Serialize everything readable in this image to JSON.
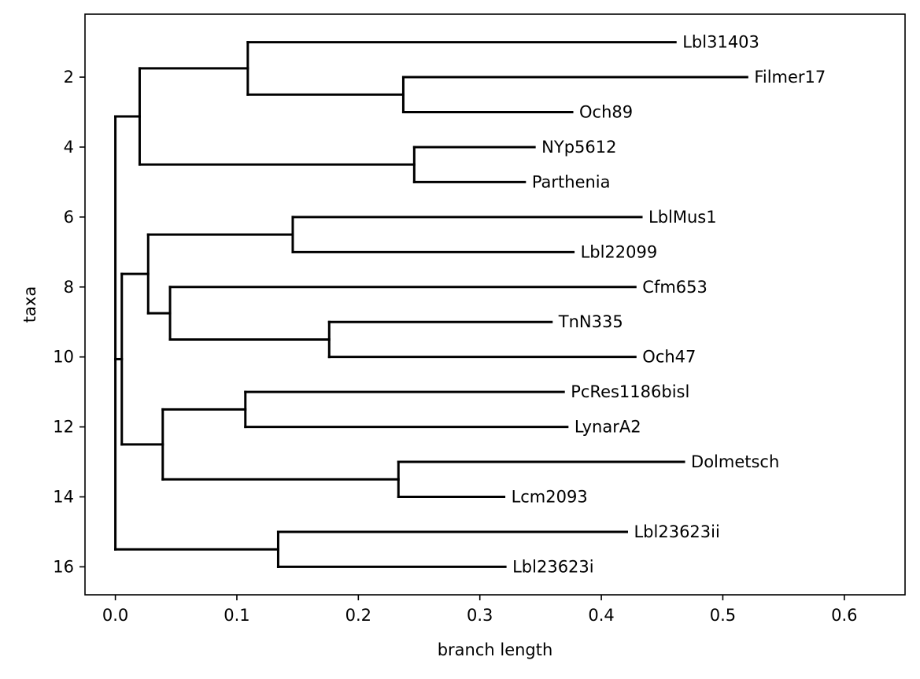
{
  "chart_data": {
    "type": "dendrogram",
    "xlabel": "branch length",
    "ylabel": "taxa",
    "xlim": [
      -0.025,
      0.65
    ],
    "ylim": [
      16.8,
      0.2
    ],
    "grid": false,
    "xticks": [
      {
        "value": 0.0,
        "label": "0.0"
      },
      {
        "value": 0.1,
        "label": "0.1"
      },
      {
        "value": 0.2,
        "label": "0.2"
      },
      {
        "value": 0.3,
        "label": "0.3"
      },
      {
        "value": 0.4,
        "label": "0.4"
      },
      {
        "value": 0.5,
        "label": "0.5"
      },
      {
        "value": 0.6,
        "label": "0.6"
      }
    ],
    "yticks": [
      {
        "value": 2,
        "label": "2"
      },
      {
        "value": 4,
        "label": "4"
      },
      {
        "value": 6,
        "label": "6"
      },
      {
        "value": 8,
        "label": "8"
      },
      {
        "value": 10,
        "label": "10"
      },
      {
        "value": 12,
        "label": "12"
      },
      {
        "value": 14,
        "label": "14"
      },
      {
        "value": 16,
        "label": "16"
      }
    ],
    "leaves": [
      {
        "name": "Lbl31403",
        "y": 1,
        "x": 0.461
      },
      {
        "name": "Filmer17",
        "y": 2,
        "x": 0.52
      },
      {
        "name": "Och89",
        "y": 3,
        "x": 0.376
      },
      {
        "name": "NYp5612",
        "y": 4,
        "x": 0.345
      },
      {
        "name": "Parthenia",
        "y": 5,
        "x": 0.337
      },
      {
        "name": "LblMus1",
        "y": 6,
        "x": 0.433
      },
      {
        "name": "Lbl22099",
        "y": 7,
        "x": 0.377
      },
      {
        "name": "Cfm653",
        "y": 8,
        "x": 0.428
      },
      {
        "name": "TnN335",
        "y": 9,
        "x": 0.359
      },
      {
        "name": "Och47",
        "y": 10,
        "x": 0.428
      },
      {
        "name": "PcRes1186bisl",
        "y": 11,
        "x": 0.369
      },
      {
        "name": "LynarA2",
        "y": 12,
        "x": 0.372
      },
      {
        "name": "Dolmetsch",
        "y": 13,
        "x": 0.468
      },
      {
        "name": "Lcm2093",
        "y": 14,
        "x": 0.32
      },
      {
        "name": "Lbl23623ii",
        "y": 15,
        "x": 0.421
      },
      {
        "name": "Lbl23623i",
        "y": 16,
        "x": 0.321
      }
    ],
    "internal_nodes": [
      {
        "id": "root",
        "x": 0.0,
        "parent": null
      },
      {
        "id": "n1",
        "x": 0.02,
        "parent": "root"
      },
      {
        "id": "n2",
        "x": 0.109,
        "parent": "n1"
      },
      {
        "id": "n3",
        "x": 0.237,
        "parent": "n2"
      },
      {
        "id": "n4",
        "x": 0.246,
        "parent": "n1"
      },
      {
        "id": "n5",
        "x": 0.0053,
        "parent": "root"
      },
      {
        "id": "n6",
        "x": 0.027,
        "parent": "n5"
      },
      {
        "id": "n7",
        "x": 0.146,
        "parent": "n6"
      },
      {
        "id": "n8",
        "x": 0.045,
        "parent": "n6"
      },
      {
        "id": "n9",
        "x": 0.176,
        "parent": "n8"
      },
      {
        "id": "n10",
        "x": 0.039,
        "parent": "n5"
      },
      {
        "id": "n11",
        "x": 0.107,
        "parent": "n10"
      },
      {
        "id": "n12",
        "x": 0.233,
        "parent": "n10"
      },
      {
        "id": "n13",
        "x": 0.134,
        "parent": "root"
      }
    ],
    "leaf_parents": {
      "Lbl31403": "n2",
      "Filmer17": "n3",
      "Och89": "n3",
      "NYp5612": "n4",
      "Parthenia": "n4",
      "LblMus1": "n7",
      "Lbl22099": "n7",
      "Cfm653": "n8",
      "TnN335": "n9",
      "Och47": "n9",
      "PcRes1186bisl": "n11",
      "LynarA2": "n11",
      "Dolmetsch": "n12",
      "Lcm2093": "n12",
      "Lbl23623ii": "n13",
      "Lbl23623i": "n13"
    }
  }
}
